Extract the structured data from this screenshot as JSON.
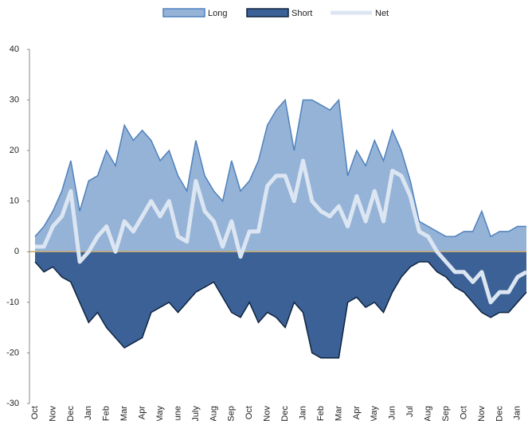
{
  "chart_data": {
    "type": "area",
    "categories": [
      "Oct",
      null,
      "Nov",
      null,
      "Dec",
      null,
      "Jan",
      null,
      "Feb",
      null,
      "Mar",
      null,
      "Apr",
      null,
      "May",
      null,
      "June",
      null,
      "July",
      null,
      "Aug",
      null,
      "Sep",
      null,
      "Oct",
      null,
      "Nov",
      null,
      "Dec",
      null,
      "Jan",
      null,
      "Feb",
      null,
      "Mar",
      null,
      "Apr",
      null,
      "May",
      null,
      "Jun",
      null,
      "Jul",
      null,
      "Aug",
      null,
      "Sep",
      null,
      "Oct",
      null,
      "Nov",
      null,
      "Dec",
      null,
      "Jan",
      null
    ],
    "series": [
      {
        "name": "Long",
        "color": "#95b3d7",
        "values": [
          3,
          5,
          8,
          12,
          18,
          8,
          14,
          15,
          20,
          17,
          25,
          22,
          24,
          22,
          18,
          20,
          15,
          12,
          22,
          15,
          12,
          10,
          18,
          12,
          14,
          18,
          25,
          28,
          30,
          20,
          30,
          30,
          29,
          28,
          30,
          15,
          20,
          17,
          22,
          18,
          24,
          20,
          14,
          6,
          5,
          4,
          3,
          3,
          4,
          4,
          8,
          3,
          4,
          4,
          5,
          5
        ]
      },
      {
        "name": "Short",
        "color": "#3c6196",
        "values": [
          -2,
          -4,
          -3,
          -5,
          -6,
          -10,
          -14,
          -12,
          -15,
          -17,
          -19,
          -18,
          -17,
          -12,
          -11,
          -10,
          -12,
          -10,
          -8,
          -7,
          -6,
          -9,
          -12,
          -13,
          -10,
          -14,
          -12,
          -13,
          -15,
          -10,
          -12,
          -20,
          -21,
          -21,
          -21,
          -10,
          -9,
          -11,
          -10,
          -12,
          -8,
          -5,
          -3,
          -2,
          -2,
          -4,
          -5,
          -7,
          -8,
          -10,
          -12,
          -13,
          -12,
          -12,
          -10,
          -8
        ]
      },
      {
        "name": "Net",
        "color": "#dce6f2",
        "values": [
          1,
          1,
          5,
          7,
          12,
          -2,
          0,
          3,
          5,
          0,
          6,
          4,
          7,
          10,
          7,
          10,
          3,
          2,
          14,
          8,
          6,
          1,
          6,
          -1,
          4,
          4,
          13,
          15,
          15,
          10,
          18,
          10,
          8,
          7,
          9,
          5,
          11,
          6,
          12,
          6,
          16,
          15,
          11,
          4,
          3,
          0,
          -2,
          -4,
          -4,
          -6,
          -4,
          -10,
          -8,
          -8,
          -5,
          -4
        ]
      }
    ],
    "ylim": [
      -30,
      40
    ],
    "yticks": [
      -30,
      -20,
      -10,
      0,
      10,
      20,
      30,
      40
    ],
    "grid": false,
    "legend": "top"
  }
}
